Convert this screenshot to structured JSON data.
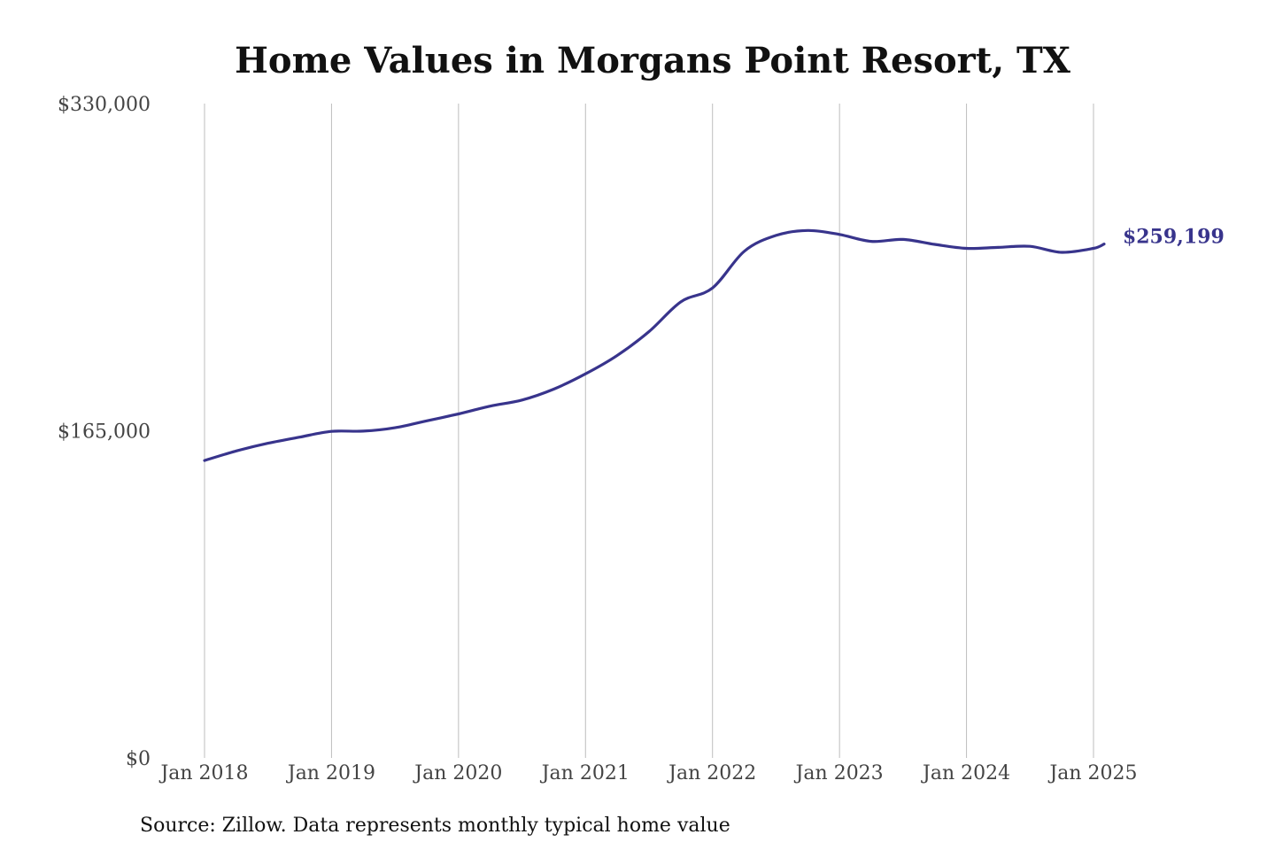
{
  "chart_data": {
    "type": "line",
    "title": "Home Values in Morgans Point Resort, TX",
    "xlabel": "",
    "ylabel": "",
    "ylim": [
      0,
      330000
    ],
    "y_ticks": [
      {
        "value": 0,
        "label": "$0"
      },
      {
        "value": 165000,
        "label": "$165,000"
      },
      {
        "value": 330000,
        "label": "$330,000"
      }
    ],
    "x_ticks": [
      {
        "value": 2018.0,
        "label": "Jan 2018"
      },
      {
        "value": 2019.0,
        "label": "Jan 2019"
      },
      {
        "value": 2020.0,
        "label": "Jan 2020"
      },
      {
        "value": 2021.0,
        "label": "Jan 2021"
      },
      {
        "value": 2022.0,
        "label": "Jan 2022"
      },
      {
        "value": 2023.0,
        "label": "Jan 2023"
      },
      {
        "value": 2024.0,
        "label": "Jan 2024"
      },
      {
        "value": 2025.0,
        "label": "Jan 2025"
      }
    ],
    "grid": "vertical",
    "series": [
      {
        "color": "#38348c",
        "x": [
          "2018-01",
          "2018-04",
          "2018-07",
          "2018-10",
          "2019-01",
          "2019-04",
          "2019-07",
          "2019-10",
          "2020-01",
          "2020-04",
          "2020-07",
          "2020-10",
          "2021-01",
          "2021-04",
          "2021-07",
          "2021-10",
          "2022-01",
          "2022-04",
          "2022-07",
          "2022-10",
          "2023-01",
          "2023-04",
          "2023-07",
          "2023-10",
          "2024-01",
          "2024-04",
          "2024-07",
          "2024-10",
          "2025-01",
          "2025-02"
        ],
        "values": [
          150000,
          154800,
          158700,
          161800,
          164700,
          164800,
          166500,
          170000,
          173500,
          177400,
          180500,
          186000,
          193700,
          203000,
          215000,
          230000,
          237000,
          255500,
          263500,
          266000,
          264000,
          260500,
          261500,
          259000,
          257000,
          257500,
          258000,
          255000,
          257000,
          259199
        ]
      }
    ],
    "end_label": "$259,199",
    "source": "Source: Zillow. Data represents monthly typical home value"
  }
}
